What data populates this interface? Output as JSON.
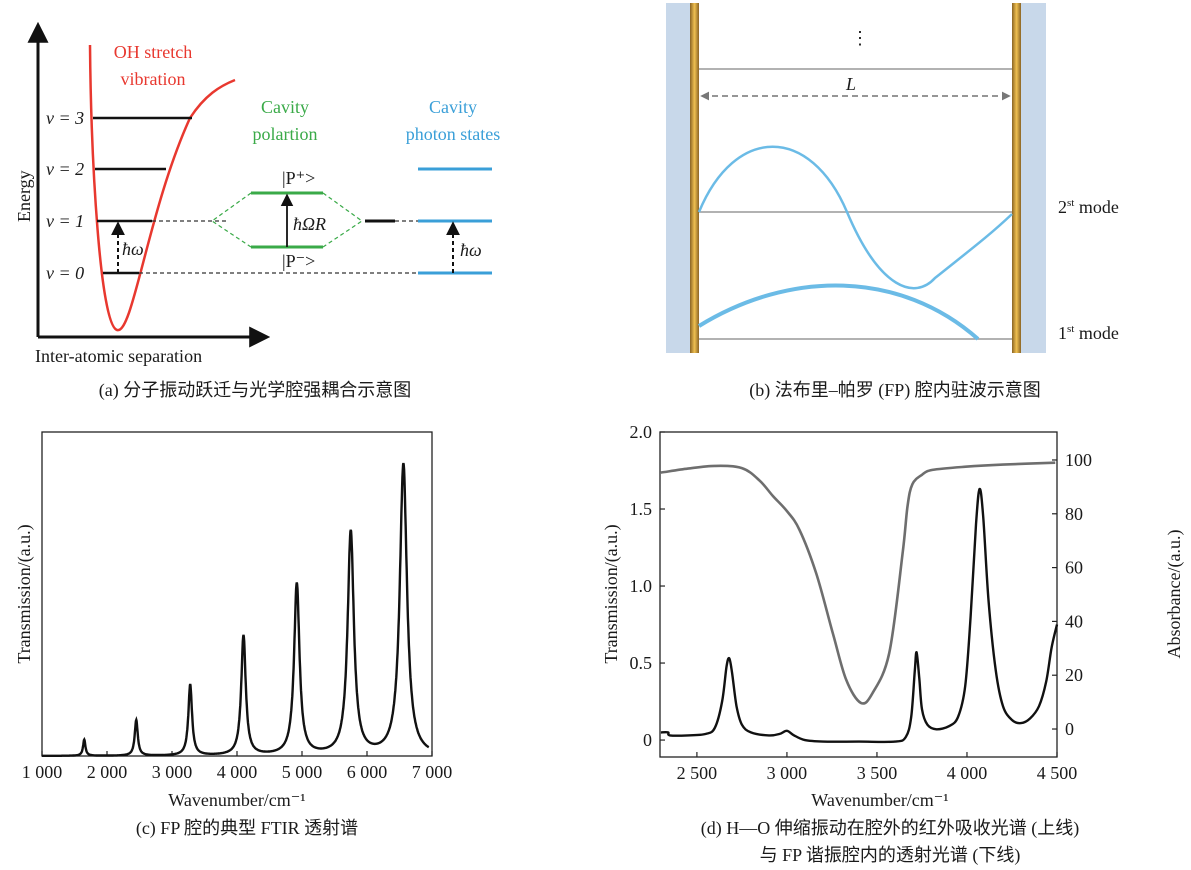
{
  "panel_a": {
    "title_red": [
      "OH stretch",
      "vibration"
    ],
    "title_green": [
      "Cavity",
      "polartion"
    ],
    "title_blue": [
      "Cavity",
      "photon states"
    ],
    "levels": [
      "v = 3",
      "v = 2",
      "v = 1",
      "v = 0"
    ],
    "hbar_omega": "ħω",
    "hbar_omega_r": "ħΩR",
    "p_plus": "|P⁺>",
    "p_minus": "|P⁻>",
    "y_label": "Energy",
    "x_label": "Inter-atomic separation",
    "caption": "(a) 分子振动跃迁与光学腔强耦合示意图",
    "colors": {
      "red": "#e8382f",
      "green": "#3aaa48",
      "blue": "#3a9fd8"
    }
  },
  "panel_b": {
    "dots": "⋮",
    "length_label": "L",
    "mode2": {
      "num": "2",
      "sup": "st",
      "text": " mode"
    },
    "mode1": {
      "num": "1",
      "sup": "st",
      "text": " mode"
    },
    "caption": "(b) 法布里–帕罗 (FP) 腔内驻波示意图",
    "colors": {
      "mirror": "#c9922a",
      "glass": "#c8d8ea",
      "wave": "#6bbbe6"
    }
  },
  "chart_data": [
    {
      "id": "c",
      "type": "line",
      "title": "",
      "xlabel": "Wavenumber/cm⁻¹",
      "ylabel": "Transmission/(a.u.)",
      "xlim": [
        1000,
        7000
      ],
      "ylim": [
        0,
        1
      ],
      "xticks": [
        1000,
        2000,
        3000,
        4000,
        5000,
        6000,
        7000
      ],
      "xtick_labels": [
        "1 000",
        "2 000",
        "3 000",
        "4 000",
        "5 000",
        "6 000",
        "7 000"
      ],
      "grid": false,
      "peaks": [
        {
          "x": 1650,
          "y": 0.05,
          "width": 22
        },
        {
          "x": 2450,
          "y": 0.11,
          "width": 28
        },
        {
          "x": 3280,
          "y": 0.22,
          "width": 34
        },
        {
          "x": 4100,
          "y": 0.37,
          "width": 42
        },
        {
          "x": 4920,
          "y": 0.53,
          "width": 50
        },
        {
          "x": 5750,
          "y": 0.69,
          "width": 58
        },
        {
          "x": 6560,
          "y": 0.9,
          "width": 66
        }
      ],
      "x_end": 6950,
      "caption": "(c) FP 腔的典型 FTIR 透射谱"
    },
    {
      "id": "d",
      "type": "line",
      "xlabel": "Wavenumber/cm⁻¹",
      "ylabel_left": "Transmission/(a.u.)",
      "ylabel_right": "Absorbance/(a.u.)",
      "xlim": [
        2295,
        4500
      ],
      "ylim_left": [
        -0.11,
        2.0
      ],
      "ylim_right": [
        -10.4,
        110.4
      ],
      "xticks": [
        2500,
        3000,
        3500,
        4000,
        4500
      ],
      "xtick_labels": [
        "2 500",
        "3 000",
        "3 500",
        "4 000",
        "4 500"
      ],
      "yticks_left": [
        0,
        0.5,
        1.0,
        1.5,
        2.0
      ],
      "ytick_labels_left": [
        "0",
        "0.5",
        "1.0",
        "1.5",
        "2.0"
      ],
      "yticks_right": [
        0,
        20,
        40,
        60,
        80,
        100
      ],
      "ytick_labels_right": [
        "0",
        "20",
        "40",
        "60",
        "80",
        "100"
      ],
      "grid": false,
      "series": [
        {
          "name": "Absorbance outside cavity (upper line)",
          "axis": "right",
          "color": "#6e6e6e",
          "x": [
            2300,
            2450,
            2600,
            2750,
            2849,
            2922,
            3000,
            3070,
            3162,
            3255,
            3329,
            3411,
            3476,
            3568,
            3642,
            3670,
            3697,
            3750,
            3808,
            3993,
            4200,
            4490
          ],
          "y": [
            95.3,
            96.8,
            97.8,
            97.0,
            92.3,
            86.6,
            81,
            74,
            58,
            35.6,
            18.3,
            9.7,
            13.4,
            28.2,
            65,
            83,
            91,
            94.5,
            96.3,
            97.5,
            98.3,
            99
          ]
        },
        {
          "name": "Transmission in FP cavity (lower line)",
          "axis": "left",
          "color": "#111111",
          "x": [
            2300,
            2340,
            2350,
            2450,
            2550,
            2600,
            2640,
            2665,
            2680,
            2695,
            2720,
            2750,
            2800,
            2900,
            2960,
            3000,
            3040,
            3100,
            3200,
            3400,
            3600,
            3660,
            3690,
            3710,
            3720,
            3735,
            3750,
            3780,
            3830,
            3900,
            3950,
            3990,
            4020,
            4050,
            4070,
            4090,
            4120,
            4160,
            4200,
            4250,
            4300,
            4350,
            4400,
            4440,
            4470,
            4500
          ],
          "y": [
            0.05,
            0.05,
            0.03,
            0.03,
            0.04,
            0.08,
            0.25,
            0.48,
            0.53,
            0.44,
            0.22,
            0.1,
            0.05,
            0.03,
            0.04,
            0.06,
            0.03,
            0.0,
            -0.01,
            -0.01,
            -0.01,
            0.02,
            0.15,
            0.45,
            0.57,
            0.4,
            0.2,
            0.1,
            0.07,
            0.09,
            0.15,
            0.35,
            0.8,
            1.4,
            1.63,
            1.45,
            0.9,
            0.45,
            0.22,
            0.13,
            0.11,
            0.14,
            0.22,
            0.38,
            0.6,
            0.75
          ]
        }
      ],
      "caption_lines": [
        "(d) H—O 伸缩振动在腔外的红外吸收光谱 (上线)",
        "与 FP 谐振腔内的透射光谱 (下线)"
      ]
    }
  ]
}
